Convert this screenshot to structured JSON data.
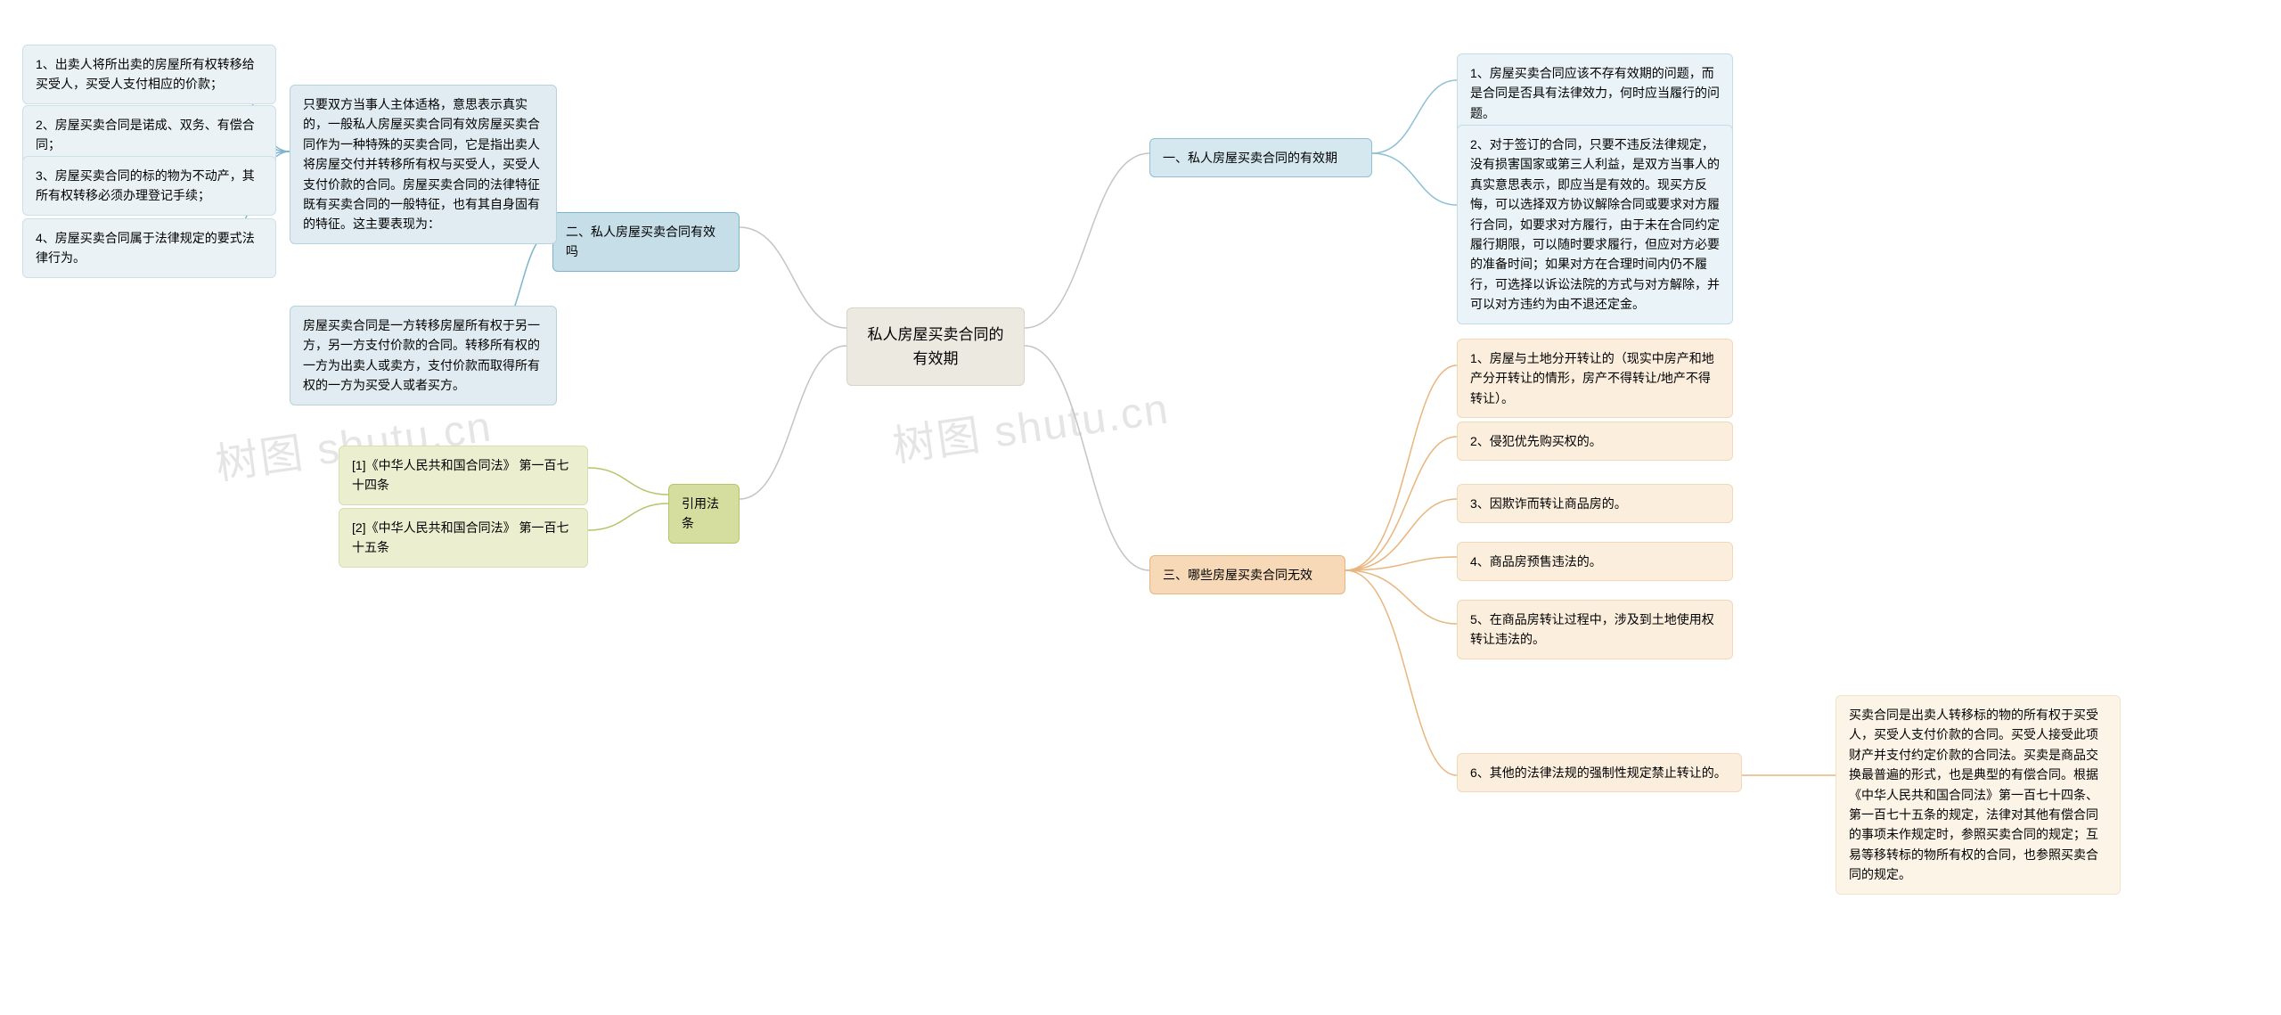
{
  "watermark": "树图 shutu.cn",
  "center": {
    "title": "私人房屋买卖合同的有效期"
  },
  "branch1": {
    "title": "一、私人房屋买卖合同的有效期",
    "color": "#8fc0d6",
    "leaves": [
      "1、房屋买卖合同应该不存有效期的问题，而是合同是否具有法律效力，何时应当履行的问题。",
      "2、对于签订的合同，只要不违反法律规定，没有损害国家或第三人利益，是双方当事人的真实意思表示，即应当是有效的。现买方反悔，可以选择双方协议解除合同或要求对方履行合同，如要求对方履行，由于未在合同约定履行期限，可以随时要求履行，但应对方必要的准备时间；如果对方在合理时间内仍不履行，可选择以诉讼法院的方式与对方解除，并可以对方违约为由不退还定金。"
    ]
  },
  "branch2": {
    "title": "二、私人房屋买卖合同有效吗",
    "color": "#7fb5cc",
    "desc": "只要双方当事人主体适格，意思表示真实的，一般私人房屋买卖合同有效房屋买卖合同作为一种特殊的买卖合同，它是指出卖人将房屋交付并转移所有权与买受人，买受人支付价款的合同。房屋买卖合同的法律特征既有买卖合同的一般特征，也有其自身固有的特征。这主要表现为：",
    "desc2": "房屋买卖合同是一方转移房屋所有权于另一方，另一方支付价款的合同。转移所有权的一方为出卖人或卖方，支付价款而取得所有权的一方为买受人或者买方。",
    "leaves": [
      "1、出卖人将所出卖的房屋所有权转移给买受人，买受人支付相应的价款；",
      "2、房屋买卖合同是诺成、双务、有偿合同；",
      "3、房屋买卖合同的标的物为不动产，其所有权转移必须办理登记手续；",
      "4、房屋买卖合同属于法律规定的要式法律行为。"
    ]
  },
  "branch3": {
    "title": "三、哪些房屋买卖合同无效",
    "color": "#e8b57d",
    "leaves": [
      "1、房屋与土地分开转让的（现实中房产和地产分开转让的情形，房产不得转让/地产不得转让）。",
      "2、侵犯优先购买权的。",
      "3、因欺诈而转让商品房的。",
      "4、商品房预售违法的。",
      "5、在商品房转让过程中，涉及到土地使用权转让违法的。",
      "6、其他的法律法规的强制性规定禁止转让的。"
    ],
    "leaf6desc": "买卖合同是出卖人转移标的物的所有权于买受人，买受人支付价款的合同。买受人接受此项财产并支付约定价款的合同法。买卖是商品交换最普遍的形式，也是典型的有偿合同。根据《中华人民共和国合同法》第一百七十四条、第一百七十五条的规定，法律对其他有偿合同的事项未作规定时，参照买卖合同的规定；互易等移转标的物所有权的合同，也参照买卖合同的规定。"
  },
  "branch4": {
    "title": "引用法条",
    "color": "#b8c46a",
    "leaves": [
      "[1]《中华人民共和国合同法》 第一百七十四条",
      "[2]《中华人民共和国合同法》 第一百七十五条"
    ]
  },
  "colors": {
    "connector1": "#8fc0d6",
    "connector2": "#7fb5cc",
    "connector3": "#e8b57d",
    "connector4": "#b8c46a",
    "connectorCenter": "#c4c4c4"
  }
}
